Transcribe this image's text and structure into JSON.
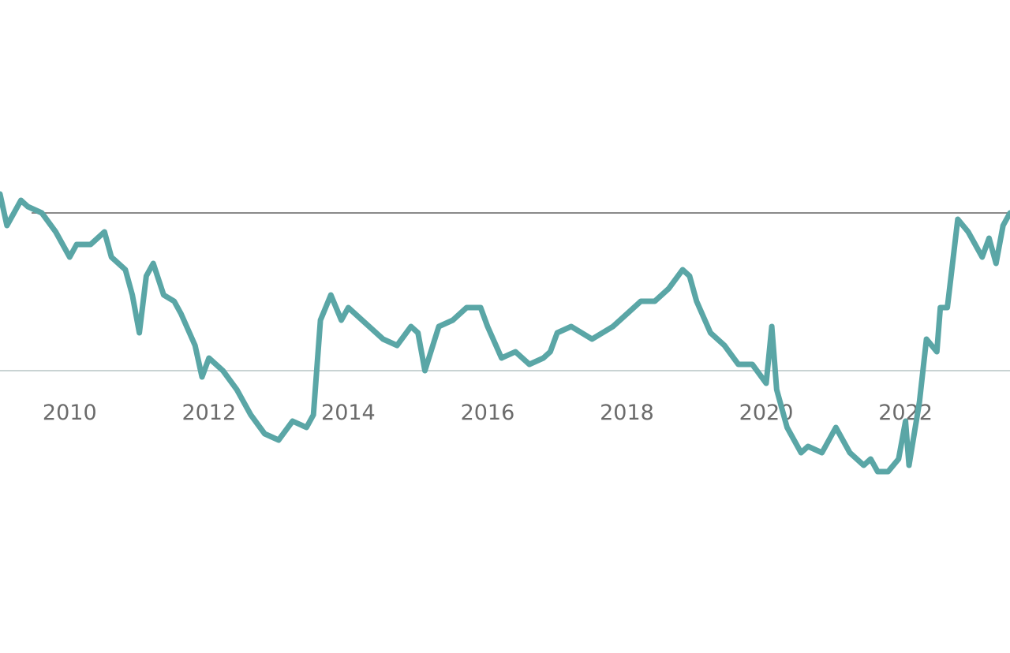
{
  "chart_data": {
    "type": "line",
    "title": "",
    "xlabel": "",
    "ylabel": "",
    "x_tick_labels": [
      "2010",
      "2012",
      "2014",
      "2016",
      "2018",
      "2020",
      "2022"
    ],
    "x_ticks": [
      2010,
      2012,
      2014,
      2016,
      2018,
      2020,
      2022
    ],
    "xlim": [
      2009.0,
      2023.5
    ],
    "ylim": [
      -0.22,
      0.42
    ],
    "y_tick_labels_shown": false,
    "grid": false,
    "reference_lines": [
      0.0,
      0.25
    ],
    "series": [
      {
        "color": "#5aa6a6",
        "x": [
          2009.0,
          2009.1,
          2009.2,
          2009.3,
          2009.4,
          2009.6,
          2009.8,
          2010.0,
          2010.1,
          2010.3,
          2010.5,
          2010.6,
          2010.8,
          2010.9,
          2011.0,
          2011.1,
          2011.2,
          2011.35,
          2011.5,
          2011.6,
          2011.8,
          2011.9,
          2012.0,
          2012.2,
          2012.4,
          2012.6,
          2012.8,
          2013.0,
          2013.2,
          2013.4,
          2013.5,
          2013.6,
          2013.75,
          2013.9,
          2014.0,
          2014.2,
          2014.5,
          2014.7,
          2014.9,
          2015.0,
          2015.1,
          2015.3,
          2015.5,
          2015.7,
          2015.9,
          2016.0,
          2016.2,
          2016.4,
          2016.6,
          2016.8,
          2016.9,
          2017.0,
          2017.2,
          2017.5,
          2017.8,
          2018.0,
          2018.2,
          2018.4,
          2018.6,
          2018.8,
          2018.9,
          2019.0,
          2019.2,
          2019.4,
          2019.6,
          2019.8,
          2020.0,
          2020.08,
          2020.15,
          2020.3,
          2020.5,
          2020.6,
          2020.8,
          2021.0,
          2021.2,
          2021.4,
          2021.5,
          2021.6,
          2021.75,
          2021.9,
          2022.0,
          2022.05,
          2022.2,
          2022.3,
          2022.45,
          2022.5,
          2022.6,
          2022.75,
          2022.9,
          2023.0,
          2023.1,
          2023.2,
          2023.3,
          2023.4,
          2023.5
        ],
        "values": [
          0.28,
          0.23,
          0.25,
          0.27,
          0.26,
          0.25,
          0.22,
          0.18,
          0.2,
          0.2,
          0.22,
          0.18,
          0.16,
          0.12,
          0.06,
          0.15,
          0.17,
          0.12,
          0.11,
          0.09,
          0.04,
          -0.01,
          0.02,
          0.0,
          -0.03,
          -0.07,
          -0.1,
          -0.11,
          -0.08,
          -0.09,
          -0.07,
          0.08,
          0.12,
          0.08,
          0.1,
          0.08,
          0.05,
          0.04,
          0.07,
          0.06,
          0.0,
          0.07,
          0.08,
          0.1,
          0.1,
          0.07,
          0.02,
          0.03,
          0.01,
          0.02,
          0.03,
          0.06,
          0.07,
          0.05,
          0.07,
          0.09,
          0.11,
          0.11,
          0.13,
          0.16,
          0.15,
          0.11,
          0.06,
          0.04,
          0.01,
          0.01,
          -0.02,
          0.07,
          -0.03,
          -0.09,
          -0.13,
          -0.12,
          -0.13,
          -0.09,
          -0.13,
          -0.15,
          -0.14,
          -0.16,
          -0.16,
          -0.14,
          -0.08,
          -0.15,
          -0.05,
          0.05,
          0.03,
          0.1,
          0.1,
          0.24,
          0.22,
          0.2,
          0.18,
          0.21,
          0.17,
          0.23,
          0.25
        ]
      }
    ]
  }
}
